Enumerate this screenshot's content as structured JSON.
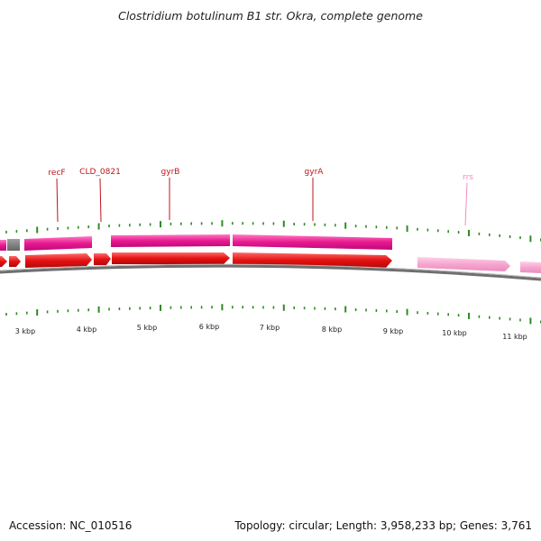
{
  "title": "Clostridium botulinum B1 str. Okra, complete genome",
  "footer": {
    "accession": "Accession: NC_010516",
    "summary": "Topology: circular; Length: 3,958,233 bp; Genes: 3,761"
  },
  "colors": {
    "gene_label": "#c0141a",
    "rrs_label": "#f08cc0",
    "cds_magenta": "#e8198f",
    "cds_red": "#e51212",
    "rrna_pink": "#f6a6cf",
    "backbone": "#6f6f6f",
    "tick": "#2e8b22"
  },
  "gene_labels": [
    {
      "id": "recF",
      "text": "recF"
    },
    {
      "id": "cld0821",
      "text": "CLD_0821"
    },
    {
      "id": "gyrB",
      "text": "gyrB"
    },
    {
      "id": "gyrA",
      "text": "gyrA"
    },
    {
      "id": "rrs",
      "text": "rrs"
    }
  ],
  "scale_labels": [
    "3 kbp",
    "4 kbp",
    "5 kbp",
    "6 kbp",
    "7 kbp",
    "8 kbp",
    "9 kbp",
    "10 kbp",
    "11 kbp"
  ]
}
